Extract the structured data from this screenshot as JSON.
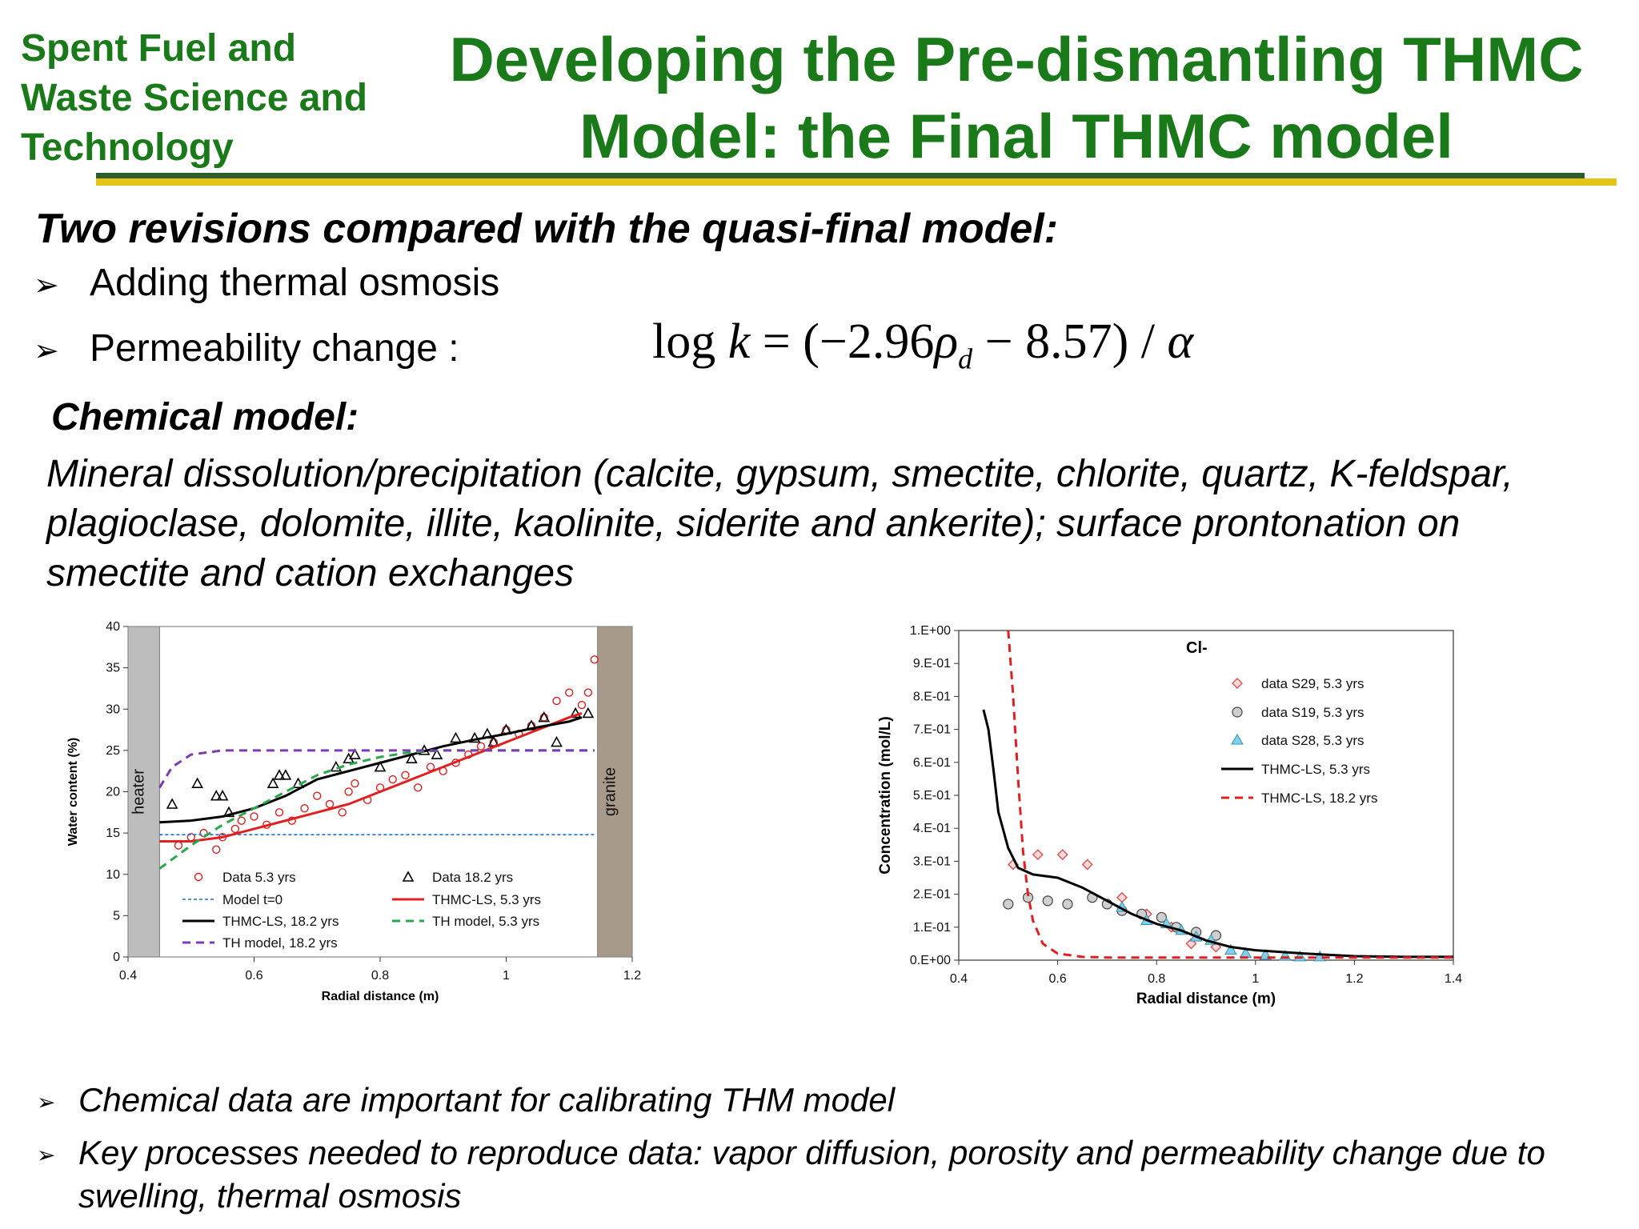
{
  "header": {
    "org": "Spent Fuel and Waste Science and Technology",
    "title": "Developing the Pre-dismantling  THMC Model: the Final THMC model"
  },
  "colors": {
    "green": "#1a7a1a",
    "yellow_rule": "#e6c417",
    "dark_rule": "#2e5e2e"
  },
  "subtitle": "Two revisions compared with the quasi-final model:",
  "bullets": [
    "Adding thermal osmosis",
    "Permeability change :"
  ],
  "formula": {
    "lhs": "log",
    "k": "k",
    "eq": "=",
    "rhs_open": "(−2.96",
    "rho": "ρ",
    "sub": "d",
    "rhs_close": "− 8.57) /",
    "alpha": "α"
  },
  "chemical": {
    "heading": "Chemical model:",
    "body": "Mineral dissolution/precipitation (calcite, gypsum, smectite, chlorite, quartz, K-feldspar, plagioclase, dolomite, illite, kaolinite, siderite and ankerite); surface prontonation on smectite and cation exchanges"
  },
  "notes": [
    "Chemical data are important for calibrating THM model",
    "Key processes needed to reproduce data: vapor diffusion, porosity and permeability change due to swelling, thermal osmosis"
  ],
  "chart_data": [
    {
      "type": "scatter",
      "xlabel": "Radial distance (m)",
      "ylabel": "Water content (%)",
      "xlim": [
        0.4,
        1.2
      ],
      "ylim": [
        0,
        40
      ],
      "xticks": [
        "0.4",
        "0.6",
        "0.8",
        "1",
        "1.2"
      ],
      "yticks": [
        "0",
        "5",
        "10",
        "15",
        "20",
        "25",
        "30",
        "35",
        "40"
      ],
      "zones": [
        {
          "label": "heater",
          "x0": 0.4,
          "x1": 0.45,
          "color": "#bdbdbd"
        },
        {
          "label": "granite",
          "x0": 1.145,
          "x1": 1.2,
          "color": "#a89a8a"
        }
      ],
      "series": [
        {
          "name": "Data 5.3 yrs",
          "style": "circle",
          "color": "#e02020",
          "x": [
            0.48,
            0.5,
            0.52,
            0.54,
            0.55,
            0.57,
            0.58,
            0.6,
            0.62,
            0.64,
            0.66,
            0.68,
            0.7,
            0.72,
            0.74,
            0.75,
            0.76,
            0.78,
            0.8,
            0.82,
            0.84,
            0.86,
            0.88,
            0.9,
            0.92,
            0.94,
            0.96,
            0.98,
            1.0,
            1.02,
            1.04,
            1.06,
            1.08,
            1.1,
            1.12,
            1.13,
            1.14
          ],
          "y": [
            13.5,
            14.5,
            15,
            13,
            14.5,
            15.5,
            16.5,
            17,
            16,
            17.5,
            16.5,
            18,
            19.5,
            18.5,
            17.5,
            20,
            21,
            19,
            20.5,
            21.5,
            22,
            20.5,
            23,
            22.5,
            23.5,
            24.5,
            25.5,
            26,
            27.5,
            27,
            28,
            29,
            31,
            32,
            30.5,
            32,
            36
          ]
        },
        {
          "name": "Data 18.2 yrs",
          "style": "triangle",
          "color": "#000000",
          "x": [
            0.47,
            0.51,
            0.54,
            0.55,
            0.56,
            0.63,
            0.64,
            0.65,
            0.67,
            0.73,
            0.75,
            0.76,
            0.8,
            0.85,
            0.87,
            0.89,
            0.92,
            0.95,
            0.97,
            0.98,
            1.0,
            1.04,
            1.06,
            1.08,
            1.11,
            1.13
          ],
          "y": [
            18.5,
            21,
            19.5,
            19.5,
            17.5,
            21,
            22,
            22,
            21,
            23,
            24,
            24.5,
            23,
            24,
            25,
            24.5,
            26.5,
            26.5,
            27,
            26,
            27.5,
            28,
            29,
            26,
            29.5,
            29.5
          ]
        },
        {
          "name": "Model t=0",
          "style": "dotted",
          "color": "#1f6fd1",
          "x": [
            0.45,
            1.14
          ],
          "y": [
            14.8,
            14.8
          ]
        },
        {
          "name": "THMC-LS, 5.3 yrs",
          "style": "solid",
          "color": "#e02020",
          "x": [
            0.45,
            0.5,
            0.55,
            0.6,
            0.65,
            0.7,
            0.75,
            0.8,
            0.85,
            0.9,
            0.95,
            1.0,
            1.05,
            1.1,
            1.12
          ],
          "y": [
            14,
            14,
            14.5,
            15.5,
            16.5,
            17.5,
            18.5,
            20,
            21.5,
            23,
            24.5,
            26,
            27.5,
            29,
            29.5
          ]
        },
        {
          "name": "THMC-LS, 18.2 yrs",
          "style": "solid",
          "color": "#000000",
          "x": [
            0.45,
            0.5,
            0.55,
            0.6,
            0.65,
            0.7,
            0.75,
            0.8,
            0.85,
            0.9,
            0.95,
            1.0,
            1.05,
            1.1,
            1.12
          ],
          "y": [
            16.3,
            16.5,
            17,
            18,
            19.5,
            21.5,
            22.5,
            23.5,
            24.5,
            25.5,
            26.3,
            27,
            27.8,
            28.5,
            29
          ]
        },
        {
          "name": "TH model, 5.3 yrs",
          "style": "dashed",
          "color": "#2aa84a",
          "x": [
            0.45,
            0.5,
            0.55,
            0.6,
            0.65,
            0.7,
            0.75,
            0.8,
            0.85,
            0.9,
            0.95,
            1.0,
            1.05,
            1.1,
            1.14
          ],
          "y": [
            10.7,
            13.5,
            16,
            18,
            20,
            22,
            23.3,
            24.2,
            24.8,
            25,
            25,
            25,
            25,
            25,
            25
          ]
        },
        {
          "name": "TH model, 18.2 yrs",
          "style": "dashed",
          "color": "#7a3db0",
          "x": [
            0.45,
            0.47,
            0.5,
            0.55,
            0.6,
            0.7,
            0.8,
            0.9,
            1.0,
            1.1,
            1.14
          ],
          "y": [
            20.5,
            23,
            24.5,
            25,
            25,
            25,
            25,
            25,
            25,
            25,
            25
          ]
        }
      ]
    },
    {
      "type": "scatter",
      "xlabel": "Radial distance (m)",
      "ylabel": "Concentration (mol/L)",
      "annotation": "Cl-",
      "xlim": [
        0.4,
        1.4
      ],
      "ylim": [
        0,
        1
      ],
      "xticks": [
        "0.4",
        "0.6",
        "0.8",
        "1",
        "1.2",
        "1.4"
      ],
      "yticks": [
        "0.E+00",
        "1.E-01",
        "2.E-01",
        "3.E-01",
        "4.E-01",
        "5.E-01",
        "6.E-01",
        "7.E-01",
        "8.E-01",
        "9.E-01",
        "1.E+00"
      ],
      "series": [
        {
          "name": "data S29, 5.3 yrs",
          "style": "diamond",
          "color": "#e05050",
          "x": [
            0.51,
            0.56,
            0.61,
            0.66,
            0.73,
            0.78,
            0.83,
            0.87,
            0.92
          ],
          "y": [
            0.29,
            0.32,
            0.32,
            0.29,
            0.19,
            0.14,
            0.1,
            0.05,
            0.04
          ]
        },
        {
          "name": "data S19, 5.3 yrs",
          "style": "circle-gray",
          "color": "#888888",
          "x": [
            0.5,
            0.54,
            0.58,
            0.62,
            0.67,
            0.7,
            0.73,
            0.77,
            0.81,
            0.84,
            0.88,
            0.92
          ],
          "y": [
            0.17,
            0.19,
            0.18,
            0.17,
            0.19,
            0.17,
            0.15,
            0.14,
            0.13,
            0.1,
            0.085,
            0.075
          ]
        },
        {
          "name": "data S28, 5.3 yrs",
          "style": "triangle-blue",
          "color": "#7fd0e8",
          "x": [
            0.73,
            0.78,
            0.82,
            0.85,
            0.88,
            0.91,
            0.95,
            0.98,
            1.02,
            1.06,
            1.09,
            1.13
          ],
          "y": [
            0.16,
            0.12,
            0.11,
            0.09,
            0.07,
            0.06,
            0.03,
            0.02,
            0.015,
            0.012,
            0.01,
            0.01
          ]
        },
        {
          "name": "THMC-LS, 5.3 yrs",
          "style": "solid",
          "color": "#000000",
          "x": [
            0.45,
            0.46,
            0.47,
            0.48,
            0.5,
            0.52,
            0.55,
            0.6,
            0.65,
            0.7,
            0.75,
            0.8,
            0.85,
            0.9,
            0.95,
            1.0,
            1.1,
            1.2,
            1.3,
            1.4
          ],
          "y": [
            0.76,
            0.7,
            0.58,
            0.45,
            0.34,
            0.28,
            0.26,
            0.25,
            0.22,
            0.18,
            0.14,
            0.11,
            0.09,
            0.06,
            0.04,
            0.03,
            0.02,
            0.012,
            0.01,
            0.01
          ]
        },
        {
          "name": "THMC-LS, 18.2 yrs",
          "style": "dashed",
          "color": "#e02020",
          "x": [
            0.5,
            0.51,
            0.52,
            0.53,
            0.54,
            0.55,
            0.57,
            0.6,
            0.65,
            0.7,
            0.8,
            1.0,
            1.2,
            1.4
          ],
          "y": [
            1.0,
            0.8,
            0.55,
            0.33,
            0.2,
            0.12,
            0.05,
            0.02,
            0.01,
            0.008,
            0.008,
            0.008,
            0.008,
            0.008
          ]
        }
      ]
    }
  ]
}
